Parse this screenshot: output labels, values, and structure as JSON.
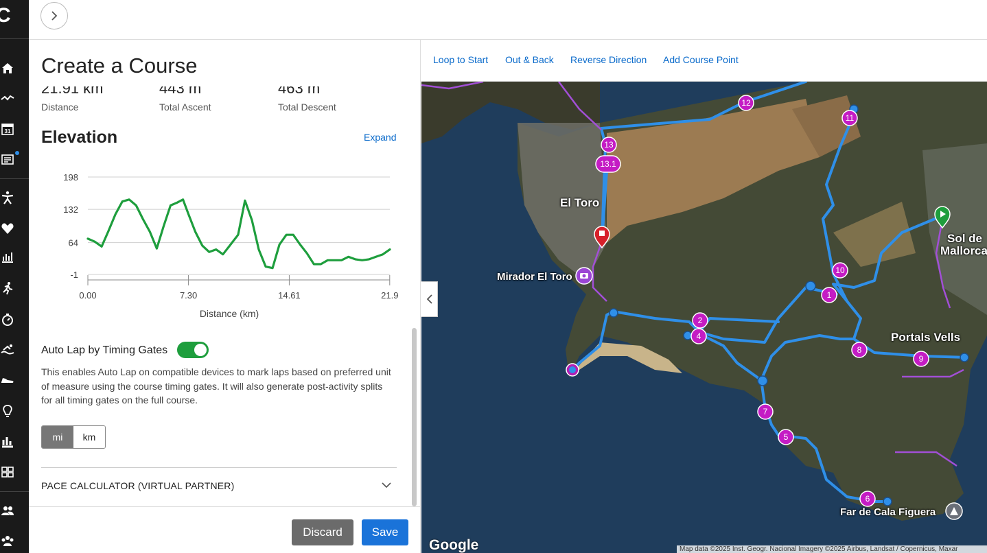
{
  "app": {
    "logo_letter": "C"
  },
  "sidebar": {
    "icons": [
      "home-icon",
      "activity-icon",
      "calendar-icon",
      "news-icon",
      "training-icon",
      "health-icon",
      "stats-icon",
      "running-icon",
      "stopwatch-icon",
      "swimming-icon",
      "shoe-icon",
      "insights-icon",
      "reports-icon",
      "widgets-icon",
      "groups-icon",
      "connections-icon"
    ],
    "calendar_day": "31"
  },
  "panel": {
    "title": "Create a Course",
    "stats": [
      {
        "value": "21.91 km",
        "label": "Distance"
      },
      {
        "value": "443 m",
        "label": "Total Ascent"
      },
      {
        "value": "463 m",
        "label": "Total Descent"
      }
    ],
    "elevation_title": "Elevation",
    "expand_label": "Expand",
    "auto_lap_label": "Auto Lap by Timing Gates",
    "auto_lap_on": true,
    "auto_lap_description": "This enables Auto Lap on compatible devices to mark laps based on preferred unit of measure using the course timing gates. It will also generate post-activity splits for all timing gates on the full course.",
    "units": {
      "options": [
        "mi",
        "km"
      ],
      "selected": "mi"
    },
    "pace_calculator_label": "PACE CALCULATOR (VIRTUAL PARTNER)",
    "discard_label": "Discard",
    "save_label": "Save"
  },
  "chart_data": {
    "type": "line",
    "xlabel": "Distance (km)",
    "ylabel": "",
    "x_ticks": [
      "0.00",
      "7.30",
      "14.61",
      "21.9"
    ],
    "y_ticks": [
      "198",
      "132",
      "64",
      "-1"
    ],
    "ylim": [
      -1,
      198
    ],
    "xlim": [
      0,
      21.91
    ],
    "grid": true,
    "color": "#1e9e3d",
    "x": [
      0,
      0.5,
      1.0,
      1.5,
      2.0,
      2.5,
      3.0,
      3.5,
      4.0,
      4.5,
      5.0,
      5.5,
      6.0,
      6.5,
      6.9,
      7.3,
      7.8,
      8.3,
      8.8,
      9.3,
      9.8,
      10.3,
      10.9,
      11.4,
      11.9,
      12.4,
      12.9,
      13.4,
      13.9,
      14.4,
      14.9,
      15.4,
      15.9,
      16.4,
      16.9,
      17.4,
      17.9,
      18.4,
      18.9,
      19.4,
      19.9,
      20.4,
      20.9,
      21.4,
      21.91
    ],
    "y": [
      72,
      66,
      56,
      88,
      122,
      148,
      152,
      140,
      112,
      86,
      52,
      98,
      140,
      146,
      152,
      122,
      86,
      58,
      45,
      50,
      40,
      58,
      80,
      150,
      110,
      50,
      15,
      12,
      60,
      80,
      80,
      60,
      42,
      20,
      20,
      28,
      28,
      28,
      35,
      30,
      28,
      30,
      35,
      40,
      50
    ]
  },
  "map": {
    "toolbar": [
      "Loop to Start",
      "Out & Back",
      "Reverse Direction",
      "Add Course Point"
    ],
    "place_labels": [
      "El Toro",
      "Mirador El Toro",
      "Portals Vells",
      "Sol de",
      "Mallorca",
      "Far de Cala Figuera"
    ],
    "course_points": [
      "1",
      "2",
      "4",
      "5",
      "6",
      "7",
      "8",
      "9",
      "10",
      "11",
      "12",
      "13",
      "13.1"
    ],
    "google_label": "Google",
    "attribution": "Map data ©2025 Inst. Geogr. Nacional Imagery ©2025 Airbus, Landsat / Copernicus, Maxar"
  },
  "colors": {
    "accent": "#0b6bcb",
    "toggle_on": "#1e9e3d",
    "route": "#2f8fe8",
    "course_point": "#c41cc4",
    "start_pin": "#1e9e3d",
    "end_pin": "#d6202a"
  }
}
